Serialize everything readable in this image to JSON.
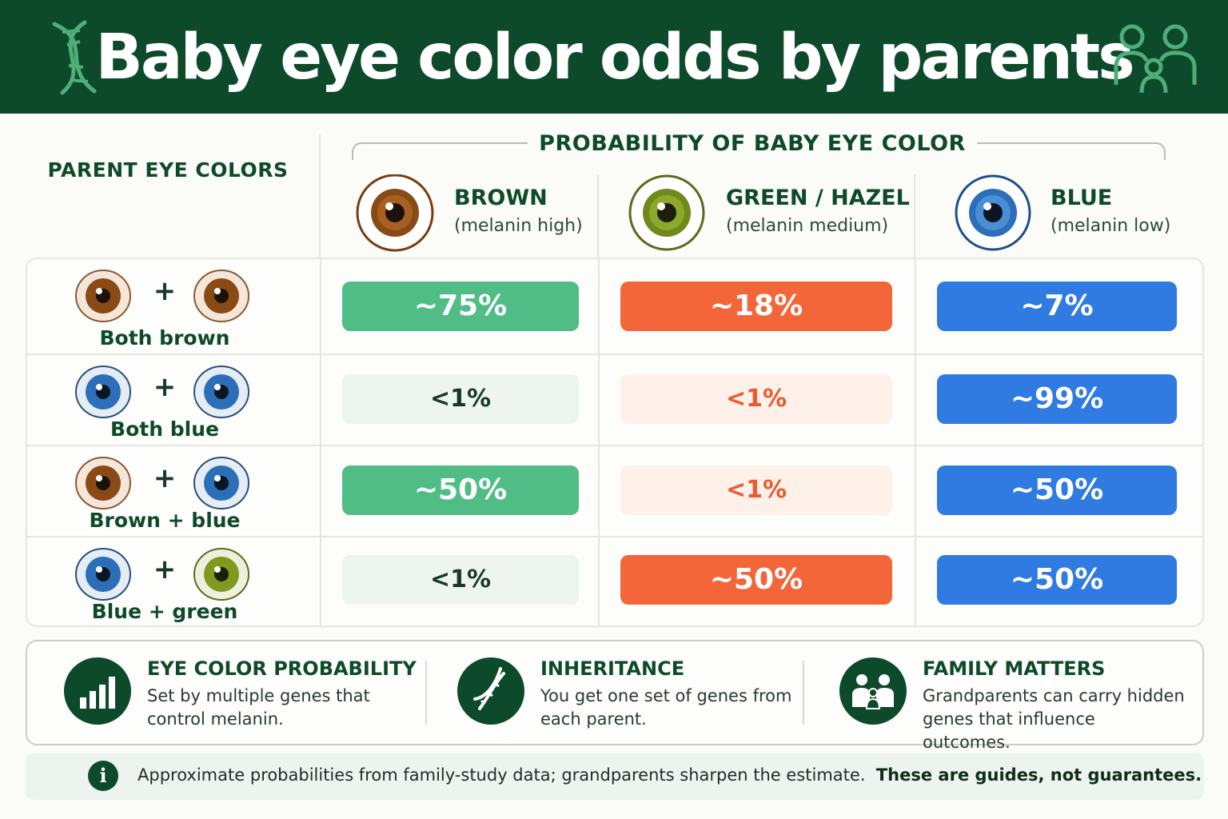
{
  "header": {
    "title": "Baby eye color odds by parents"
  },
  "parent_heading": "PARENT EYE COLORS",
  "probability_heading": "PROBABILITY OF BABY EYE COLOR",
  "columns": [
    {
      "name": "BROWN",
      "sub": "(melanin high)",
      "eye": "brown-eye-icon",
      "color": "#8a4a16"
    },
    {
      "name": "GREEN / HAZEL",
      "sub": "(melanin medium)",
      "eye": "green-eye-icon",
      "color": "#7f9a1f"
    },
    {
      "name": "BLUE",
      "sub": "(melanin low)",
      "eye": "blue-eye-icon",
      "color": "#2c6fb8"
    }
  ],
  "rows": [
    {
      "label": "Both brown",
      "parents": [
        "brown",
        "brown"
      ],
      "values": [
        "~75%",
        "~18%",
        "~7%"
      ]
    },
    {
      "label": "Both blue",
      "parents": [
        "blue",
        "blue"
      ],
      "values": [
        "<1%",
        "<1%",
        "~99%"
      ]
    },
    {
      "label": "Brown + blue",
      "parents": [
        "brown",
        "blue"
      ],
      "values": [
        "~50%",
        "<1%",
        "~50%"
      ]
    },
    {
      "label": "Blue + green",
      "parents": [
        "blue",
        "green"
      ],
      "values": [
        "<1%",
        "~50%",
        "~50%"
      ]
    }
  ],
  "plus": "+",
  "colors": {
    "header": "#0d4a2b",
    "brown_pill": "#50bd87",
    "green_pill": "#f2663a",
    "blue_pill": "#2f7be2"
  },
  "info": [
    {
      "heading": "EYE COLOR PROBABILITY",
      "text": "Set by multiple genes that control melanin.",
      "icon": "bar-chart-icon"
    },
    {
      "heading": "INHERITANCE",
      "text": "You get one set of genes from each parent.",
      "icon": "dna-icon"
    },
    {
      "heading": "FAMILY MATTERS",
      "text": "Grandparents can carry hidden genes that influence outcomes.",
      "icon": "family-icon"
    }
  ],
  "note": {
    "text": "Approximate probabilities from family-study data; grandparents sharpen the estimate.",
    "emphasis": "These are guides, not guarantees."
  }
}
